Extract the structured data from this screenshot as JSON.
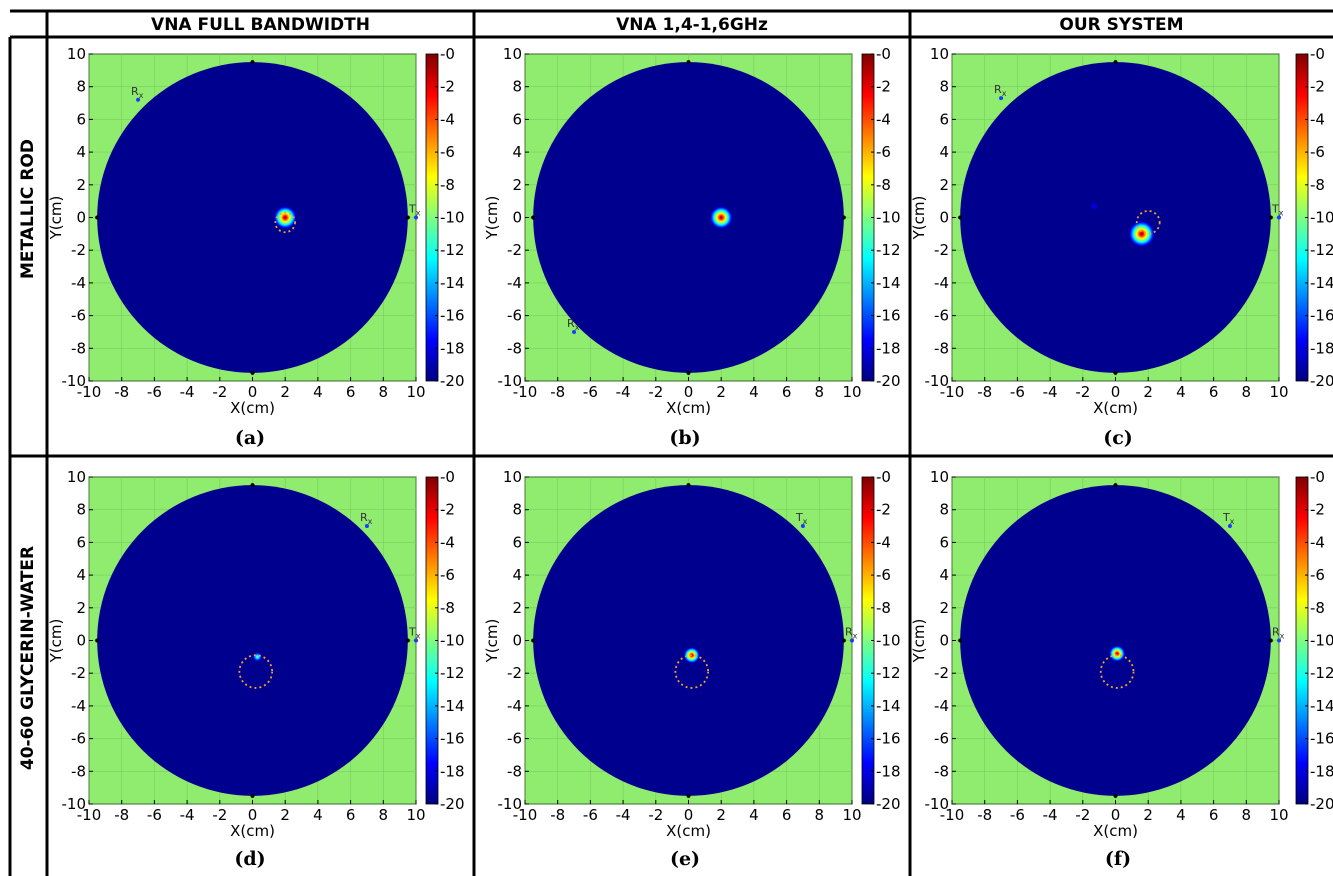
{
  "columns": [
    "VNA FULL BANDWIDTH",
    "VNA 1,4-1,6GHz",
    "OUR SYSTEM"
  ],
  "rows": [
    "METALLIC ROD",
    "40-60 GLYCERIN-WATER"
  ],
  "colors": {
    "background_outside": "#8fec6e",
    "disk": "#00008f",
    "target_ring": "#f0a030",
    "colormap": [
      "#00007f",
      "#0000ff",
      "#007fff",
      "#00ffff",
      "#7fff7f",
      "#ffff00",
      "#ff7f00",
      "#ff0000",
      "#7f0000"
    ]
  },
  "chart_data": [
    {
      "type": "heatmap",
      "panel_label": "(a)",
      "xlabel": "X(cm)",
      "ylabel": "Y(cm)",
      "xlim": [
        -10,
        10
      ],
      "ylim": [
        -10,
        10
      ],
      "xticks": [
        "-10",
        "-8",
        "-6",
        "-4",
        "-2",
        "0",
        "2",
        "4",
        "6",
        "8",
        "10"
      ],
      "yticks": [
        "10",
        "8",
        "6",
        "4",
        "2",
        "0",
        "-2",
        "-4",
        "-6",
        "-8",
        "-10"
      ],
      "colorbar": {
        "ticks": [
          "-0",
          "-2",
          "-4",
          "-6",
          "-8",
          "-10",
          "-12",
          "-14",
          "-16",
          "-18",
          "-20"
        ],
        "range": [
          -20,
          0
        ]
      },
      "disk_radius_cm": 9.5,
      "hotspots": [
        {
          "x": 2.0,
          "y": 0.0,
          "radius_cm": 0.7,
          "peak_db": 0
        }
      ],
      "true_target": {
        "x": 2.0,
        "y": -0.3,
        "radius_cm": 0.6
      },
      "antennas": [
        {
          "label": "R",
          "sub": "x",
          "x": -7.0,
          "y": 7.2
        },
        {
          "label": "T",
          "sub": "x",
          "x": 10.0,
          "y": 0.0
        }
      ]
    },
    {
      "type": "heatmap",
      "panel_label": "(b)",
      "xlabel": "X(cm)",
      "ylabel": "Y(cm)",
      "xlim": [
        -10,
        10
      ],
      "ylim": [
        -10,
        10
      ],
      "xticks": [
        "-10",
        "-8",
        "-6",
        "-4",
        "-2",
        "0",
        "2",
        "4",
        "6",
        "8",
        "10"
      ],
      "yticks": [
        "10",
        "8",
        "6",
        "4",
        "2",
        "0",
        "-2",
        "-4",
        "-6",
        "-8",
        "-10"
      ],
      "colorbar": {
        "ticks": [
          "-0",
          "-2",
          "-4",
          "-6",
          "-8",
          "-10",
          "-12",
          "-14",
          "-16",
          "-18",
          "-20"
        ],
        "range": [
          -20,
          0
        ]
      },
      "disk_radius_cm": 9.5,
      "hotspots": [
        {
          "x": 2.0,
          "y": 0.0,
          "radius_cm": 0.7,
          "peak_db": 0
        }
      ],
      "true_target": null,
      "antennas": [
        {
          "label": "R",
          "sub": "x",
          "x": -7.0,
          "y": -7.0
        }
      ]
    },
    {
      "type": "heatmap",
      "panel_label": "(c)",
      "xlabel": "X(cm)",
      "ylabel": "Y(cm)",
      "xlim": [
        -10,
        10
      ],
      "ylim": [
        -10,
        10
      ],
      "xticks": [
        "-10",
        "-8",
        "-6",
        "-4",
        "-2",
        "0",
        "2",
        "4",
        "6",
        "8",
        "10"
      ],
      "yticks": [
        "10",
        "8",
        "6",
        "4",
        "2",
        "0",
        "-2",
        "-4",
        "-6",
        "-8",
        "-10"
      ],
      "colorbar": {
        "ticks": [
          "-0",
          "-2",
          "-4",
          "-6",
          "-8",
          "-10",
          "-12",
          "-14",
          "-16",
          "-18",
          "-20"
        ],
        "range": [
          -20,
          0
        ]
      },
      "disk_radius_cm": 9.5,
      "hotspots": [
        {
          "x": 1.6,
          "y": -1.0,
          "radius_cm": 0.8,
          "peak_db": 0
        },
        {
          "x": -1.3,
          "y": 0.7,
          "radius_cm": 0.3,
          "peak_db": -17
        }
      ],
      "true_target": {
        "x": 2.0,
        "y": -0.3,
        "radius_cm": 0.7
      },
      "antennas": [
        {
          "label": "R",
          "sub": "x",
          "x": -7.0,
          "y": 7.3
        },
        {
          "label": "T",
          "sub": "x",
          "x": 10.0,
          "y": 0.0
        }
      ]
    },
    {
      "type": "heatmap",
      "panel_label": "(d)",
      "xlabel": "X(cm)",
      "ylabel": "Y(cm)",
      "xlim": [
        -10,
        10
      ],
      "ylim": [
        -10,
        10
      ],
      "xticks": [
        "-10",
        "-8",
        "-6",
        "-4",
        "-2",
        "0",
        "2",
        "4",
        "6",
        "8",
        "10"
      ],
      "yticks": [
        "10",
        "8",
        "6",
        "4",
        "2",
        "0",
        "-2",
        "-4",
        "-6",
        "-8",
        "-10"
      ],
      "colorbar": {
        "ticks": [
          "-0",
          "-2",
          "-4",
          "-6",
          "-8",
          "-10",
          "-12",
          "-14",
          "-16",
          "-18",
          "-20"
        ],
        "range": [
          -20,
          0
        ]
      },
      "disk_radius_cm": 9.5,
      "hotspots": [
        {
          "x": 0.3,
          "y": -1.0,
          "radius_cm": 0.3,
          "peak_db": -10
        }
      ],
      "true_target": {
        "x": 0.2,
        "y": -1.9,
        "radius_cm": 1.0
      },
      "antennas": [
        {
          "label": "R",
          "sub": "x",
          "x": 7.0,
          "y": 7.0
        },
        {
          "label": "T",
          "sub": "x",
          "x": 10.0,
          "y": 0.0
        }
      ]
    },
    {
      "type": "heatmap",
      "panel_label": "(e)",
      "xlabel": "X(cm)",
      "ylabel": "Y(cm)",
      "xlim": [
        -10,
        10
      ],
      "ylim": [
        -10,
        10
      ],
      "xticks": [
        "-10",
        "-8",
        "-6",
        "-4",
        "-2",
        "0",
        "2",
        "4",
        "6",
        "8",
        "10"
      ],
      "yticks": [
        "10",
        "8",
        "6",
        "4",
        "2",
        "0",
        "-2",
        "-4",
        "-6",
        "-8",
        "-10"
      ],
      "colorbar": {
        "ticks": [
          "-0",
          "-2",
          "-4",
          "-6",
          "-8",
          "-10",
          "-12",
          "-14",
          "-16",
          "-18",
          "-20"
        ],
        "range": [
          -20,
          0
        ]
      },
      "disk_radius_cm": 9.5,
      "hotspots": [
        {
          "x": 0.2,
          "y": -0.9,
          "radius_cm": 0.5,
          "peak_db": 0
        }
      ],
      "true_target": {
        "x": 0.2,
        "y": -1.9,
        "radius_cm": 1.0
      },
      "antennas": [
        {
          "label": "T",
          "sub": "x",
          "x": 7.0,
          "y": 7.0
        },
        {
          "label": "R",
          "sub": "x",
          "x": 10.0,
          "y": 0.0
        }
      ]
    },
    {
      "type": "heatmap",
      "panel_label": "(f)",
      "xlabel": "X(cm)",
      "ylabel": "Y(cm)",
      "xlim": [
        -10,
        10
      ],
      "ylim": [
        -10,
        10
      ],
      "xticks": [
        "-10",
        "-8",
        "-6",
        "-4",
        "-2",
        "0",
        "2",
        "4",
        "6",
        "8",
        "10"
      ],
      "yticks": [
        "10",
        "8",
        "6",
        "4",
        "2",
        "0",
        "-2",
        "-4",
        "-6",
        "-8",
        "-10"
      ],
      "colorbar": {
        "ticks": [
          "-0",
          "-2",
          "-4",
          "-6",
          "-8",
          "-10",
          "-12",
          "-14",
          "-16",
          "-18",
          "-20"
        ],
        "range": [
          -20,
          0
        ]
      },
      "disk_radius_cm": 9.5,
      "hotspots": [
        {
          "x": 0.1,
          "y": -0.8,
          "radius_cm": 0.5,
          "peak_db": 0
        }
      ],
      "true_target": {
        "x": 0.1,
        "y": -1.9,
        "radius_cm": 1.0
      },
      "antennas": [
        {
          "label": "T",
          "sub": "x",
          "x": 7.0,
          "y": 7.0
        },
        {
          "label": "R",
          "sub": "x",
          "x": 10.0,
          "y": 0.0
        }
      ]
    }
  ]
}
